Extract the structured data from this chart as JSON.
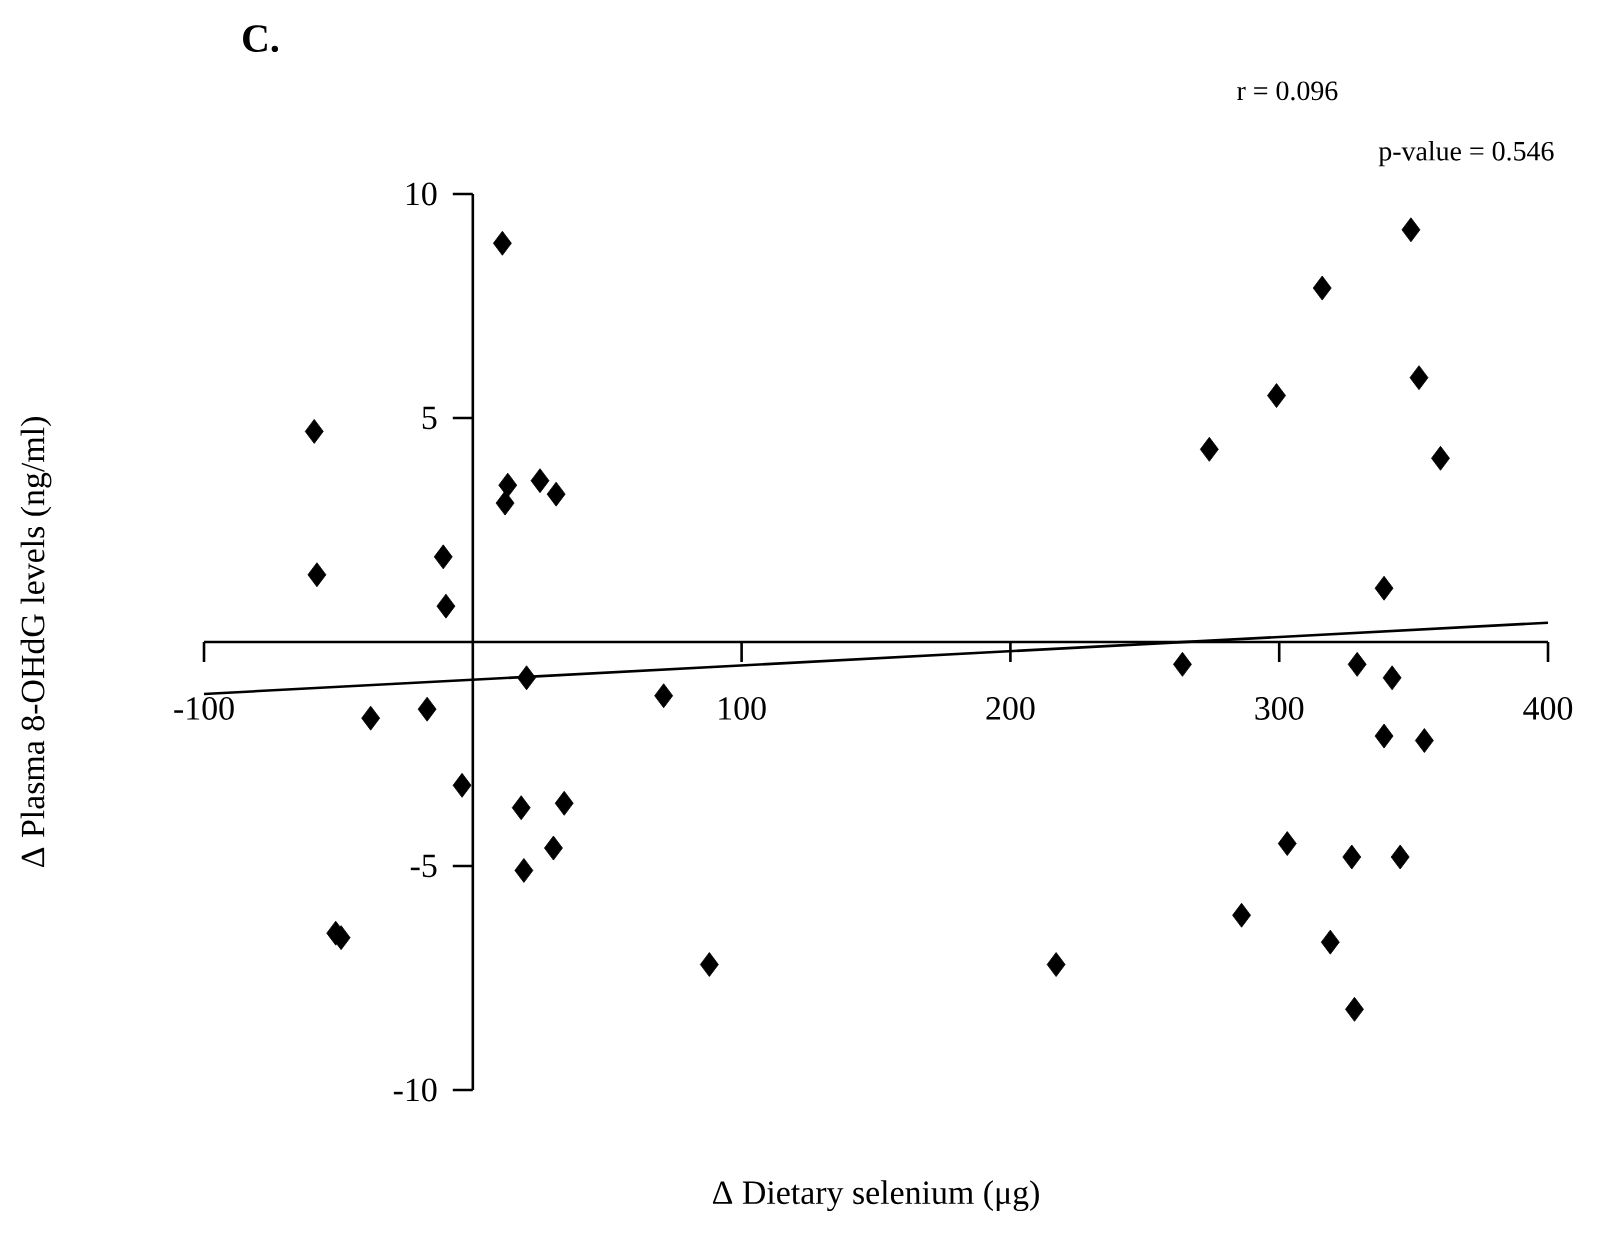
{
  "chart_data": {
    "type": "scatter",
    "title": "C.",
    "xlabel": "Δ Dietary selenium (μg)",
    "ylabel": "Δ Plasma 8-OHdG levels (ng/ml)",
    "annotations": [
      "r = 0.096",
      "p-value = 0.546"
    ],
    "xlim": [
      -100,
      400
    ],
    "ylim": [
      -10,
      10
    ],
    "xticks": [
      -100,
      100,
      200,
      300,
      400
    ],
    "yticks": [
      -10,
      -5,
      5,
      10
    ],
    "series": [
      {
        "marker": "diamond",
        "color": "#000000",
        "x": [
          11,
          -59,
          13,
          12,
          25,
          31,
          -11,
          -58,
          -10,
          20,
          71,
          -17,
          -38,
          -4,
          18,
          34,
          30,
          19,
          -51,
          -49,
          88,
          349,
          316,
          352,
          299,
          274,
          360,
          339,
          264,
          329,
          342,
          339,
          354,
          303,
          327,
          345,
          286,
          319,
          217,
          328
        ],
        "values": [
          8.9,
          4.7,
          3.5,
          3.1,
          3.6,
          3.3,
          1.9,
          1.5,
          0.8,
          -0.8,
          -1.2,
          -1.5,
          -1.7,
          -3.2,
          -3.7,
          -3.6,
          -4.6,
          -5.1,
          -6.5,
          -6.6,
          -7.2,
          9.2,
          7.9,
          5.9,
          5.5,
          4.3,
          4.1,
          1.2,
          -0.5,
          -0.5,
          -0.8,
          -2.1,
          -2.2,
          -4.5,
          -4.8,
          -4.8,
          -6.1,
          -6.7,
          -7.2,
          -8.2
        ]
      },
      {
        "type": "line",
        "marker": "none",
        "color": "#000000",
        "x": [
          -100,
          400
        ],
        "values": [
          -1.16,
          0.43
        ]
      }
    ]
  }
}
